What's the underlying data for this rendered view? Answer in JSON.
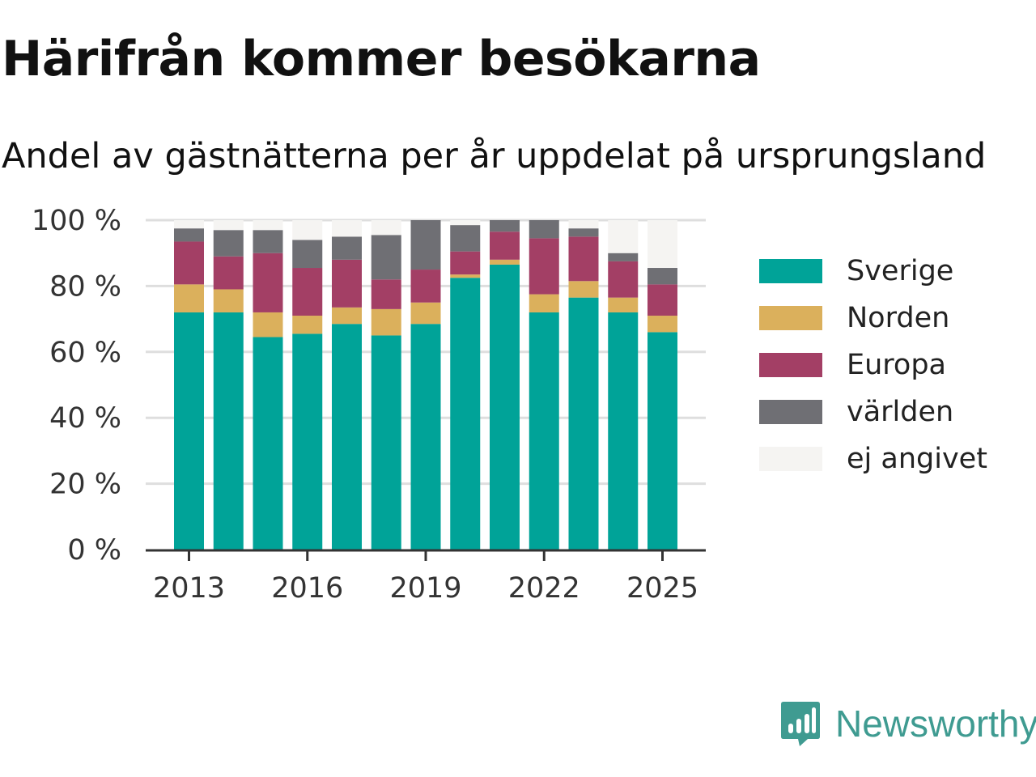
{
  "header": {
    "title": "Härifrån kommer besökarna",
    "subtitle": "Andel av gästnätterna per år uppdelat på ursprungsland"
  },
  "brand": {
    "name": "Newsworthy",
    "icon": "newsworthy-logo-icon",
    "color": "#3f9b91"
  },
  "chart_data": {
    "type": "bar",
    "stacked": true,
    "title": "Härifrån kommer besökarna",
    "subtitle": "Andel av gästnätterna per år uppdelat på ursprungsland",
    "xlabel": "",
    "ylabel": "",
    "ylim": [
      0,
      100
    ],
    "y_ticks": [
      0,
      20,
      40,
      60,
      80,
      100
    ],
    "y_tick_labels": [
      "0 %",
      "20 %",
      "40 %",
      "60 %",
      "80 %",
      "100 %"
    ],
    "x_tick_labels": [
      "2013",
      "2016",
      "2019",
      "2022",
      "2025"
    ],
    "categories": [
      "2013",
      "2014",
      "2015",
      "2016",
      "2017",
      "2018",
      "2019",
      "2020",
      "2021",
      "2022",
      "2023",
      "2024",
      "2025"
    ],
    "grid": true,
    "legend_position": "right",
    "series": [
      {
        "name": "Sverige",
        "color": "#00a398",
        "values": [
          72,
          72,
          64.5,
          65.5,
          68.5,
          65,
          68.5,
          82.5,
          86.5,
          72,
          76.5,
          72,
          66
        ]
      },
      {
        "name": "Norden",
        "color": "#dbb05c",
        "values": [
          8.5,
          7,
          7.5,
          5.5,
          5,
          8,
          6.5,
          1,
          1.5,
          5.5,
          5,
          4.5,
          5
        ]
      },
      {
        "name": "Europa",
        "color": "#a33f65",
        "values": [
          13,
          10,
          18,
          14.5,
          14.5,
          9,
          10,
          7,
          8.5,
          17,
          13.5,
          11,
          9.5
        ]
      },
      {
        "name": "världen",
        "color": "#6f6f74",
        "values": [
          4,
          8,
          7,
          8.5,
          7,
          13.5,
          15,
          8,
          3.5,
          5.5,
          2.5,
          2.5,
          5
        ]
      },
      {
        "name": "ej angivet",
        "color": "#f5f4f2",
        "values": [
          2.5,
          3,
          3,
          6,
          5,
          4.5,
          0,
          1.5,
          0,
          0,
          2.5,
          10,
          14.5
        ]
      }
    ]
  }
}
